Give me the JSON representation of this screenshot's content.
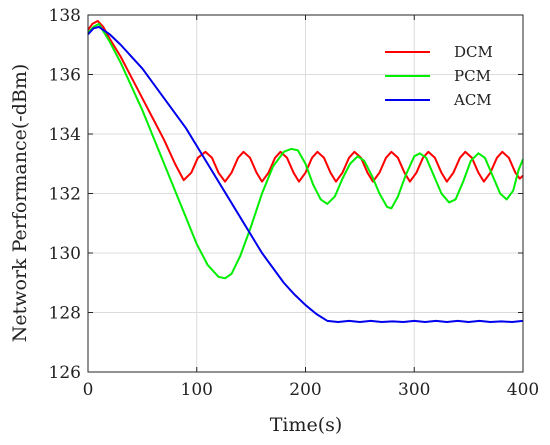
{
  "chart_data": {
    "type": "line",
    "title": "",
    "xlabel": "Time(s)",
    "ylabel": "Network Performance(-dBm)",
    "xlim": [
      0,
      400
    ],
    "ylim": [
      126,
      138
    ],
    "xticks": [
      0,
      100,
      200,
      300,
      400
    ],
    "yticks": [
      126,
      128,
      130,
      132,
      134,
      136,
      138
    ],
    "grid": true,
    "legend_position": "top-right",
    "series": [
      {
        "name": "DCM",
        "color": "#ff0000",
        "points": [
          [
            0,
            137.5
          ],
          [
            4,
            137.7
          ],
          [
            9,
            137.8
          ],
          [
            14,
            137.6
          ],
          [
            20,
            137.2
          ],
          [
            30,
            136.6
          ],
          [
            40,
            135.9
          ],
          [
            50,
            135.2
          ],
          [
            60,
            134.5
          ],
          [
            70,
            133.8
          ],
          [
            80,
            133.0
          ],
          [
            88,
            132.45
          ],
          [
            95,
            132.7
          ],
          [
            101,
            133.2
          ],
          [
            108,
            133.4
          ],
          [
            114,
            133.2
          ],
          [
            120,
            132.7
          ],
          [
            126,
            132.4
          ],
          [
            132,
            132.7
          ],
          [
            138,
            133.2
          ],
          [
            143,
            133.4
          ],
          [
            149,
            133.2
          ],
          [
            155,
            132.7
          ],
          [
            160,
            132.4
          ],
          [
            166,
            132.7
          ],
          [
            172,
            133.2
          ],
          [
            177,
            133.4
          ],
          [
            183,
            133.2
          ],
          [
            189,
            132.7
          ],
          [
            194,
            132.4
          ],
          [
            200,
            132.7
          ],
          [
            206,
            133.2
          ],
          [
            211,
            133.4
          ],
          [
            217,
            133.2
          ],
          [
            223,
            132.7
          ],
          [
            228,
            132.4
          ],
          [
            234,
            132.7
          ],
          [
            240,
            133.2
          ],
          [
            245,
            133.4
          ],
          [
            251,
            133.2
          ],
          [
            257,
            132.7
          ],
          [
            262,
            132.4
          ],
          [
            268,
            132.7
          ],
          [
            274,
            133.2
          ],
          [
            279,
            133.4
          ],
          [
            285,
            133.2
          ],
          [
            291,
            132.7
          ],
          [
            296,
            132.4
          ],
          [
            302,
            132.7
          ],
          [
            308,
            133.2
          ],
          [
            313,
            133.4
          ],
          [
            319,
            133.2
          ],
          [
            325,
            132.7
          ],
          [
            330,
            132.4
          ],
          [
            336,
            132.7
          ],
          [
            342,
            133.2
          ],
          [
            347,
            133.4
          ],
          [
            353,
            133.2
          ],
          [
            359,
            132.7
          ],
          [
            364,
            132.4
          ],
          [
            370,
            132.7
          ],
          [
            376,
            133.2
          ],
          [
            381,
            133.4
          ],
          [
            387,
            133.2
          ],
          [
            393,
            132.7
          ],
          [
            397,
            132.5
          ],
          [
            400,
            132.6
          ]
        ]
      },
      {
        "name": "PCM",
        "color": "#00ee00",
        "points": [
          [
            0,
            137.4
          ],
          [
            5,
            137.6
          ],
          [
            10,
            137.7
          ],
          [
            20,
            137.1
          ],
          [
            30,
            136.4
          ],
          [
            40,
            135.6
          ],
          [
            50,
            134.8
          ],
          [
            60,
            133.9
          ],
          [
            70,
            133.0
          ],
          [
            80,
            132.1
          ],
          [
            90,
            131.2
          ],
          [
            100,
            130.3
          ],
          [
            110,
            129.6
          ],
          [
            120,
            129.2
          ],
          [
            126,
            129.15
          ],
          [
            132,
            129.3
          ],
          [
            140,
            129.9
          ],
          [
            150,
            130.9
          ],
          [
            160,
            132.0
          ],
          [
            170,
            132.9
          ],
          [
            180,
            133.4
          ],
          [
            187,
            133.5
          ],
          [
            193,
            133.45
          ],
          [
            200,
            133.0
          ],
          [
            207,
            132.3
          ],
          [
            214,
            131.8
          ],
          [
            220,
            131.65
          ],
          [
            227,
            131.9
          ],
          [
            234,
            132.5
          ],
          [
            241,
            133.0
          ],
          [
            248,
            133.25
          ],
          [
            254,
            133.1
          ],
          [
            261,
            132.6
          ],
          [
            268,
            132.0
          ],
          [
            275,
            131.55
          ],
          [
            279,
            131.5
          ],
          [
            285,
            131.9
          ],
          [
            292,
            132.6
          ],
          [
            300,
            133.25
          ],
          [
            305,
            133.35
          ],
          [
            311,
            133.2
          ],
          [
            318,
            132.6
          ],
          [
            325,
            132.0
          ],
          [
            332,
            131.7
          ],
          [
            338,
            131.8
          ],
          [
            345,
            132.4
          ],
          [
            352,
            133.1
          ],
          [
            359,
            133.35
          ],
          [
            365,
            133.2
          ],
          [
            372,
            132.6
          ],
          [
            379,
            132.0
          ],
          [
            385,
            131.8
          ],
          [
            391,
            132.1
          ],
          [
            396,
            132.8
          ],
          [
            400,
            133.15
          ]
        ]
      },
      {
        "name": "ACM",
        "color": "#0000ee",
        "points": [
          [
            0,
            137.35
          ],
          [
            5,
            137.55
          ],
          [
            10,
            137.6
          ],
          [
            20,
            137.35
          ],
          [
            30,
            137.0
          ],
          [
            40,
            136.6
          ],
          [
            50,
            136.2
          ],
          [
            60,
            135.7
          ],
          [
            70,
            135.2
          ],
          [
            80,
            134.7
          ],
          [
            90,
            134.2
          ],
          [
            100,
            133.6
          ],
          [
            110,
            133.0
          ],
          [
            120,
            132.4
          ],
          [
            130,
            131.8
          ],
          [
            140,
            131.2
          ],
          [
            150,
            130.6
          ],
          [
            160,
            130.0
          ],
          [
            170,
            129.5
          ],
          [
            180,
            129.0
          ],
          [
            190,
            128.6
          ],
          [
            200,
            128.25
          ],
          [
            210,
            127.95
          ],
          [
            220,
            127.72
          ],
          [
            230,
            127.68
          ],
          [
            240,
            127.72
          ],
          [
            250,
            127.68
          ],
          [
            260,
            127.72
          ],
          [
            270,
            127.68
          ],
          [
            280,
            127.7
          ],
          [
            290,
            127.68
          ],
          [
            300,
            127.72
          ],
          [
            310,
            127.68
          ],
          [
            320,
            127.72
          ],
          [
            330,
            127.68
          ],
          [
            340,
            127.72
          ],
          [
            350,
            127.68
          ],
          [
            360,
            127.72
          ],
          [
            370,
            127.68
          ],
          [
            380,
            127.7
          ],
          [
            390,
            127.68
          ],
          [
            400,
            127.72
          ]
        ]
      }
    ]
  }
}
